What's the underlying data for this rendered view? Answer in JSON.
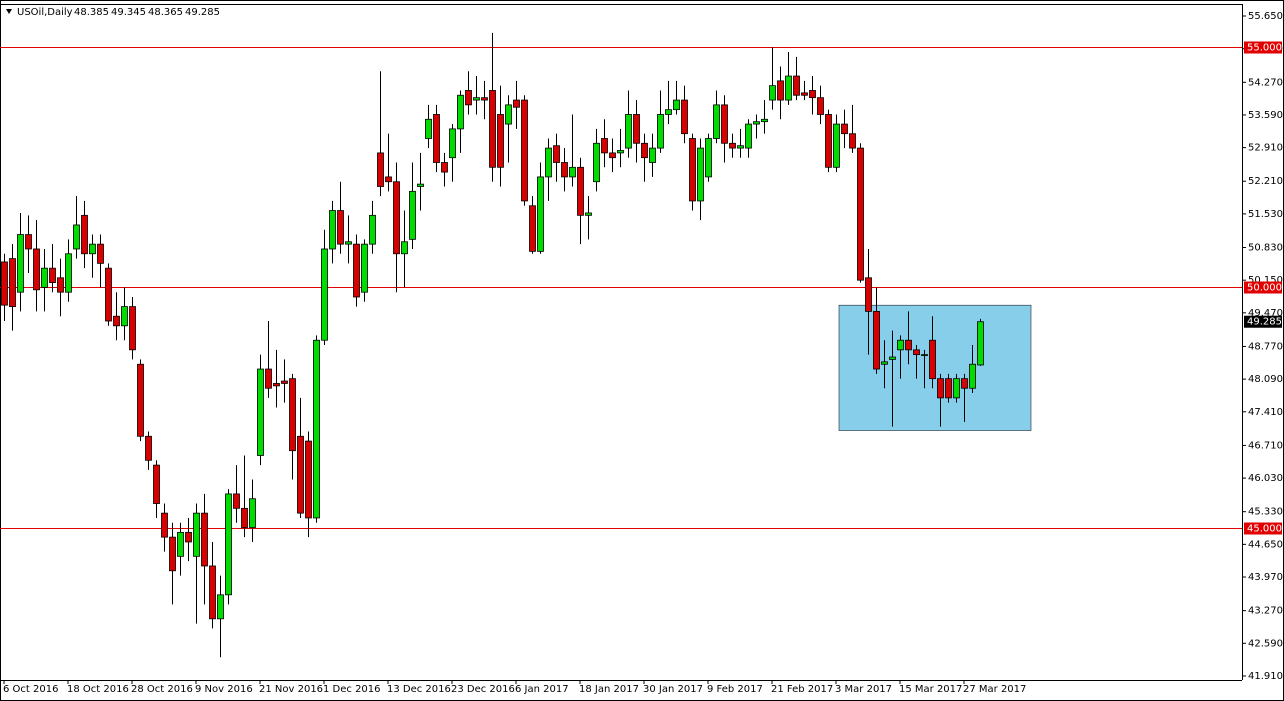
{
  "chart_data": {
    "type": "candlestick",
    "title": "USOil,Daily",
    "categories": [
      "6 Oct 2016",
      null,
      null,
      null,
      null,
      null,
      null,
      null,
      "18 Oct 2016",
      null,
      null,
      null,
      null,
      null,
      null,
      null,
      "28 Oct 2016",
      null,
      null,
      null,
      null,
      null,
      null,
      null,
      "9 Nov 2016",
      null,
      null,
      null,
      null,
      null,
      null,
      null,
      "21 Nov 2016",
      null,
      null,
      null,
      null,
      null,
      null,
      null,
      "1 Dec 2016",
      null,
      null,
      null,
      null,
      null,
      null,
      null,
      "13 Dec 2016",
      null,
      null,
      null,
      null,
      null,
      null,
      null,
      "23 Dec 2016",
      null,
      null,
      null,
      null,
      null,
      null,
      null,
      "6 Jan 2017",
      null,
      null,
      null,
      null,
      null,
      null,
      null,
      "18 Jan 2017",
      null,
      null,
      null,
      null,
      null,
      null,
      null,
      "30 Jan 2017",
      null,
      null,
      null,
      null,
      null,
      null,
      null,
      "9 Feb 2017",
      null,
      null,
      null,
      null,
      null,
      null,
      null,
      "21 Feb 2017",
      null,
      null,
      null,
      null,
      null,
      null,
      null,
      "3 Mar 2017",
      null,
      null,
      null,
      null,
      null,
      null,
      null,
      "15 Mar 2017",
      null,
      null,
      null,
      null,
      null,
      null,
      null,
      "27 Mar 2017",
      null,
      null
    ],
    "open": [
      50.53,
      50.6,
      49.9,
      51.1,
      50.8,
      50.0,
      50.4,
      50.2,
      49.9,
      50.8,
      51.5,
      50.7,
      50.9,
      50.4,
      49.4,
      49.2,
      49.6,
      48.4,
      46.9,
      46.3,
      45.3,
      44.8,
      44.4,
      44.9,
      44.4,
      45.3,
      44.2,
      43.1,
      43.6,
      45.7,
      45.4,
      45.0,
      46.5,
      48.3,
      48.0,
      48.05,
      48.1,
      46.9,
      46.8,
      45.2,
      48.9,
      50.8,
      51.6,
      50.9,
      50.9,
      49.9,
      50.9,
      52.8,
      52.3,
      52.2,
      50.7,
      51.0,
      52.1,
      53.1,
      53.6,
      52.6,
      52.7,
      53.3,
      54.1,
      53.9,
      53.95,
      54.1,
      53.6,
      53.4,
      53.9,
      53.9,
      51.7,
      50.75,
      52.3,
      52.95,
      52.6,
      52.3,
      52.5,
      51.5,
      52.2,
      53.1,
      52.8,
      52.8,
      52.9,
      53.6,
      53.0,
      52.6,
      52.9,
      53.6,
      53.7,
      53.9,
      53.1,
      51.8,
      52.3,
      53.1,
      53.8,
      53.0,
      52.9,
      52.9,
      53.4,
      53.45,
      53.9,
      54.3,
      53.9,
      54.4,
      54.05,
      54.1,
      53.95,
      53.6,
      52.5,
      53.4,
      53.2,
      52.9,
      50.2,
      49.5,
      48.4,
      48.5,
      48.7,
      48.9,
      48.7,
      48.6,
      48.9,
      48.1,
      48.1,
      47.7,
      48.1,
      47.9,
      48.385
    ],
    "high": [
      50.7,
      50.9,
      51.55,
      51.5,
      51.4,
      50.8,
      50.9,
      50.6,
      51.0,
      51.9,
      51.8,
      51.1,
      51.1,
      50.5,
      49.9,
      50.0,
      49.8,
      48.5,
      47.0,
      46.4,
      45.5,
      45.1,
      45.1,
      45.2,
      45.5,
      45.7,
      44.7,
      44.0,
      45.8,
      46.3,
      46.5,
      46.0,
      48.6,
      49.3,
      48.7,
      48.5,
      48.2,
      47.7,
      47.0,
      49.0,
      51.2,
      51.8,
      52.2,
      51.5,
      51.1,
      51.0,
      51.8,
      54.5,
      53.2,
      52.6,
      51.6,
      52.6,
      52.8,
      53.8,
      53.8,
      52.8,
      53.4,
      54.1,
      54.5,
      54.4,
      54.3,
      55.3,
      54.2,
      54.0,
      54.3,
      54.0,
      51.9,
      52.6,
      53.1,
      53.2,
      52.9,
      53.6,
      52.7,
      51.9,
      53.3,
      53.5,
      53.1,
      53.3,
      54.1,
      53.9,
      53.2,
      53.2,
      54.1,
      54.3,
      54.3,
      54.2,
      53.2,
      53.1,
      53.2,
      54.1,
      54.0,
      53.2,
      53.3,
      53.5,
      53.6,
      53.9,
      55.0,
      54.6,
      54.9,
      54.8,
      54.3,
      54.4,
      54.2,
      53.7,
      53.6,
      53.7,
      53.8,
      53.0,
      50.8,
      50.0,
      48.9,
      49.1,
      49.0,
      49.5,
      48.8,
      48.7,
      49.4,
      48.2,
      48.2,
      48.2,
      48.2,
      48.8,
      49.345
    ],
    "low": [
      49.3,
      49.1,
      49.5,
      50.3,
      49.5,
      49.5,
      49.9,
      49.4,
      49.7,
      50.6,
      50.4,
      50.2,
      50.0,
      49.2,
      48.9,
      48.9,
      48.5,
      46.8,
      46.2,
      45.2,
      44.5,
      43.4,
      44.0,
      44.3,
      43.0,
      43.4,
      42.9,
      42.3,
      43.4,
      45.1,
      44.8,
      44.7,
      46.3,
      47.7,
      47.5,
      47.6,
      46.0,
      45.2,
      44.8,
      45.1,
      48.8,
      50.5,
      50.7,
      50.5,
      49.6,
      49.7,
      50.7,
      51.9,
      52.0,
      49.9,
      50.0,
      50.8,
      51.6,
      52.9,
      52.4,
      52.1,
      52.2,
      52.8,
      53.6,
      53.6,
      53.5,
      52.2,
      52.1,
      52.6,
      53.3,
      51.7,
      50.7,
      50.7,
      51.8,
      52.2,
      52.0,
      52.1,
      50.9,
      51.0,
      52.0,
      52.5,
      52.4,
      52.5,
      52.7,
      52.6,
      52.2,
      52.3,
      52.8,
      53.4,
      53.6,
      53.0,
      51.6,
      51.4,
      52.2,
      53.0,
      52.6,
      52.7,
      52.7,
      52.7,
      53.1,
      53.2,
      53.7,
      53.5,
      53.8,
      53.9,
      53.9,
      53.6,
      53.4,
      52.4,
      52.4,
      52.9,
      52.8,
      50.1,
      48.6,
      48.2,
      47.9,
      47.1,
      48.1,
      48.4,
      48.1,
      47.9,
      47.9,
      47.1,
      47.6,
      47.6,
      47.2,
      47.8,
      48.365
    ],
    "close": [
      49.63,
      49.6,
      51.1,
      50.8,
      49.95,
      50.4,
      50.1,
      49.9,
      50.7,
      51.3,
      50.7,
      50.9,
      50.5,
      49.3,
      49.2,
      49.6,
      48.7,
      46.9,
      46.4,
      45.5,
      44.8,
      44.1,
      44.9,
      44.7,
      45.3,
      44.2,
      43.1,
      43.6,
      45.7,
      45.4,
      45.0,
      45.6,
      48.3,
      47.9,
      47.95,
      48.0,
      46.6,
      45.3,
      45.2,
      48.9,
      50.8,
      51.6,
      50.9,
      50.95,
      49.8,
      50.9,
      51.5,
      52.1,
      52.2,
      50.7,
      50.95,
      52.0,
      52.15,
      53.5,
      52.6,
      52.4,
      53.3,
      54.0,
      53.8,
      53.95,
      53.9,
      52.5,
      52.5,
      53.8,
      53.75,
      51.8,
      50.75,
      52.3,
      52.9,
      52.6,
      52.3,
      52.5,
      51.5,
      51.55,
      53.0,
      52.8,
      52.7,
      52.85,
      53.6,
      53.0,
      52.7,
      52.9,
      53.6,
      53.7,
      53.9,
      53.2,
      51.8,
      52.9,
      53.1,
      53.8,
      53.0,
      52.9,
      52.95,
      53.4,
      53.45,
      53.5,
      54.2,
      53.9,
      54.4,
      54.0,
      54.0,
      53.95,
      53.6,
      52.5,
      53.4,
      53.2,
      52.9,
      50.15,
      49.5,
      48.3,
      48.45,
      48.55,
      48.9,
      48.7,
      48.6,
      48.6,
      48.1,
      47.7,
      47.7,
      48.1,
      47.9,
      48.4,
      49.285
    ],
    "up_color": "#00dc00",
    "down_color": "#d80000",
    "ylim": [
      41.826,
      55.9
    ],
    "yticks": [
      {
        "value": 55.65,
        "label": "55.650"
      },
      {
        "value": 54.97,
        "label": "54.970"
      },
      {
        "value": 54.27,
        "label": "54.270"
      },
      {
        "value": 53.59,
        "label": "53.590"
      },
      {
        "value": 52.91,
        "label": "52.910"
      },
      {
        "value": 52.21,
        "label": "52.210"
      },
      {
        "value": 51.53,
        "label": "51.530"
      },
      {
        "value": 50.83,
        "label": "50.830"
      },
      {
        "value": 50.15,
        "label": "50.150"
      },
      {
        "value": 49.47,
        "label": "49.470"
      },
      {
        "value": 48.77,
        "label": "48.770"
      },
      {
        "value": 48.09,
        "label": "48.090"
      },
      {
        "value": 47.41,
        "label": "47.410"
      },
      {
        "value": 46.71,
        "label": "46.710"
      },
      {
        "value": 46.03,
        "label": "46.030"
      },
      {
        "value": 45.33,
        "label": "45.330"
      },
      {
        "value": 44.65,
        "label": "44.650"
      },
      {
        "value": 43.97,
        "label": "43.970"
      },
      {
        "value": 43.27,
        "label": "43.270"
      },
      {
        "value": 42.59,
        "label": "42.590"
      },
      {
        "value": 41.91,
        "label": "41.910"
      }
    ],
    "hlines": [
      {
        "value": 55,
        "label": "55.000"
      },
      {
        "value": 50,
        "label": "50.000"
      },
      {
        "value": 45,
        "label": "45.000"
      }
    ],
    "hline_color": "#e00000",
    "zone": {
      "ylim": [
        47.02,
        49.63
      ],
      "from": 105,
      "to": 129,
      "color": "#87ceeb"
    }
  }
}
